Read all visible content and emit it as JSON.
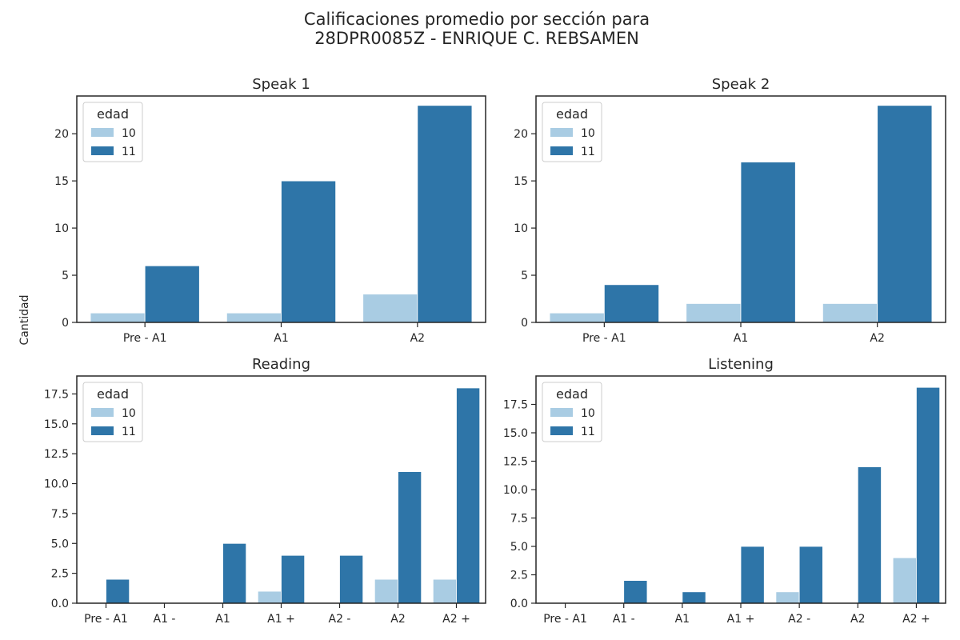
{
  "figure": {
    "title": "Calificaciones promedio por sección para\n28DPR0085Z - ENRIQUE C. REBSAMEN",
    "ylabel": "Cantidad"
  },
  "colors": {
    "age_10": "#a9cce3",
    "age_11": "#2e75a8",
    "axes": "#262626"
  },
  "chart_data": [
    {
      "type": "bar",
      "title": "Speak 1",
      "categories": [
        "Pre - A1",
        "A1",
        "A2"
      ],
      "series": [
        {
          "name": "10",
          "values": [
            1,
            1,
            3
          ]
        },
        {
          "name": "11",
          "values": [
            6,
            15,
            23
          ]
        }
      ],
      "ylim": [
        0,
        24
      ],
      "yticks": [
        0,
        5,
        10,
        15,
        20
      ],
      "legend": {
        "title": "edad",
        "placement": "top-left"
      }
    },
    {
      "type": "bar",
      "title": "Speak 2",
      "categories": [
        "Pre - A1",
        "A1",
        "A2"
      ],
      "series": [
        {
          "name": "10",
          "values": [
            1,
            2,
            2
          ]
        },
        {
          "name": "11",
          "values": [
            4,
            17,
            23
          ]
        }
      ],
      "ylim": [
        0,
        24
      ],
      "yticks": [
        0,
        5,
        10,
        15,
        20
      ],
      "legend": {
        "title": "edad",
        "placement": "top-left"
      }
    },
    {
      "type": "bar",
      "title": "Reading",
      "categories": [
        "Pre - A1",
        "A1 -",
        "A1",
        "A1 +",
        "A2 -",
        "A2",
        "A2 +"
      ],
      "series": [
        {
          "name": "10",
          "values": [
            0,
            0,
            0,
            1,
            0,
            2,
            2
          ]
        },
        {
          "name": "11",
          "values": [
            2,
            0,
            5,
            4,
            4,
            11,
            18
          ]
        }
      ],
      "ylim": [
        0,
        19
      ],
      "yticks": [
        0.0,
        2.5,
        5.0,
        7.5,
        10.0,
        12.5,
        15.0,
        17.5
      ],
      "legend": {
        "title": "edad",
        "placement": "top-left"
      }
    },
    {
      "type": "bar",
      "title": "Listening",
      "categories": [
        "Pre - A1",
        "A1 -",
        "A1",
        "A1 +",
        "A2 -",
        "A2",
        "A2 +"
      ],
      "series": [
        {
          "name": "10",
          "values": [
            0,
            0,
            0,
            0,
            1,
            0,
            4
          ]
        },
        {
          "name": "11",
          "values": [
            0,
            2,
            1,
            5,
            5,
            12,
            19
          ]
        }
      ],
      "ylim": [
        0,
        20
      ],
      "yticks": [
        0.0,
        2.5,
        5.0,
        7.5,
        10.0,
        12.5,
        15.0,
        17.5
      ],
      "legend": {
        "title": "edad",
        "placement": "top-left"
      }
    }
  ]
}
